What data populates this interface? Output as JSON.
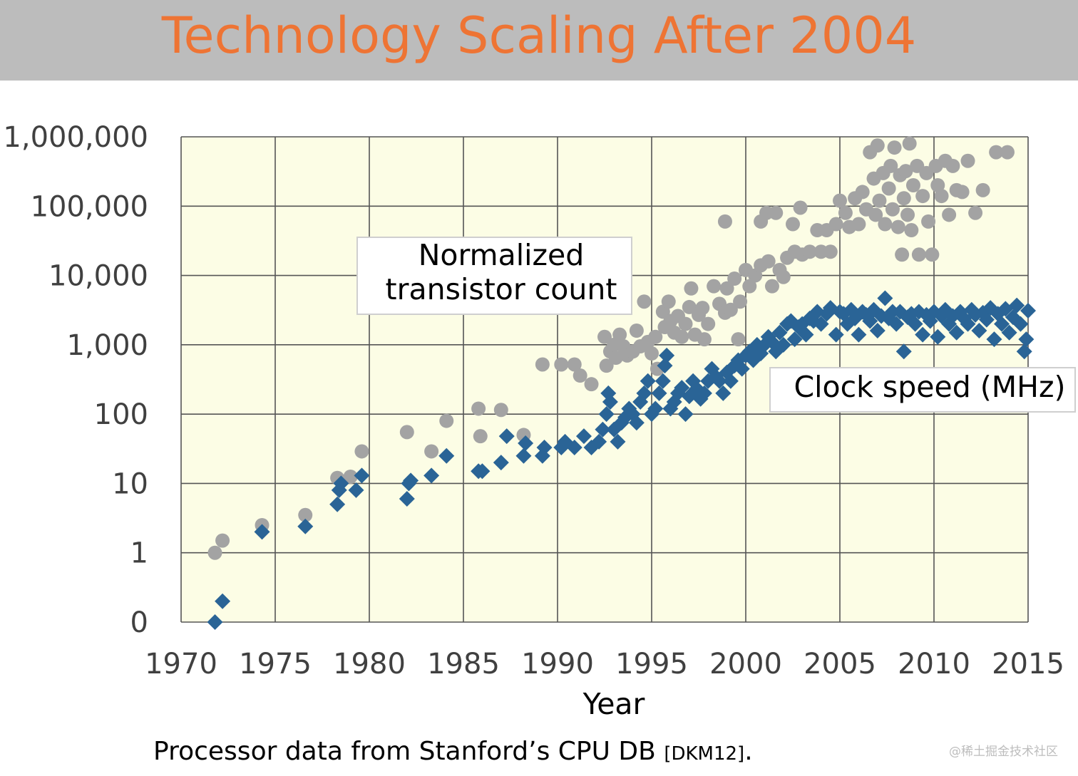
{
  "slide": {
    "title": "Technology Scaling After 2004",
    "caption": "Processor data from Stanford’s CPU DB",
    "caption_cite": "[DKM12]",
    "caption_end": ".",
    "watermark": "@稀土掘金技术社区"
  },
  "chart_data": {
    "type": "scatter",
    "title": "Technology Scaling After 2004",
    "xlabel": "Year",
    "ylabel": "",
    "xlim": [
      1970,
      2015
    ],
    "x_ticks": [
      1970,
      1975,
      1980,
      1985,
      1990,
      1995,
      2000,
      2005,
      2010,
      2015
    ],
    "x_tick_labels": [
      "1970",
      "1975",
      "1980",
      "1985",
      "1990",
      "1995",
      "2000",
      "2005",
      "2010",
      "2015"
    ],
    "y_scale": "log",
    "ylim_log10": [
      -1,
      6
    ],
    "y_ticks_log10": [
      -1,
      0,
      1,
      2,
      3,
      4,
      5,
      6
    ],
    "y_tick_labels": [
      "0",
      "1",
      "10",
      "100",
      "1,000",
      "10,000",
      "100,000",
      "1,000,000"
    ],
    "grid": true,
    "colors": {
      "plot_bg": "#fcfde5",
      "grid": "#555555",
      "transistor": "#a3a3a3",
      "clock": "#2a6496",
      "title": "#ee7434"
    },
    "annotations": [
      {
        "text_lines": [
          "Normalized",
          "transistor count"
        ],
        "series": "Normalized transistor count"
      },
      {
        "text_lines": [
          "Clock speed (MHz)"
        ],
        "series": "Clock speed (MHz)"
      }
    ],
    "series": [
      {
        "name": "Normalized transistor count",
        "marker": "circle",
        "points": [
          [
            1971.8,
            1.0
          ],
          [
            1972.2,
            1.5
          ],
          [
            1974.3,
            2.5
          ],
          [
            1976.6,
            3.5
          ],
          [
            1978.3,
            12
          ],
          [
            1979.0,
            12.5
          ],
          [
            1979.6,
            29
          ],
          [
            1982.0,
            55
          ],
          [
            1983.3,
            29
          ],
          [
            1984.1,
            80
          ],
          [
            1985.8,
            120
          ],
          [
            1985.9,
            48
          ],
          [
            1987.0,
            115
          ],
          [
            1988.2,
            50
          ],
          [
            1989.2,
            520
          ],
          [
            1990.2,
            520
          ],
          [
            1990.9,
            520
          ],
          [
            1991.2,
            360
          ],
          [
            1991.8,
            270
          ],
          [
            1992.5,
            1300
          ],
          [
            1992.6,
            500
          ],
          [
            1992.8,
            800
          ],
          [
            1993.0,
            1000
          ],
          [
            1993.1,
            650
          ],
          [
            1993.3,
            1400
          ],
          [
            1993.5,
            950
          ],
          [
            1993.7,
            700
          ],
          [
            1994.0,
            800
          ],
          [
            1994.2,
            1600
          ],
          [
            1994.4,
            950
          ],
          [
            1994.6,
            4200
          ],
          [
            1994.8,
            1100
          ],
          [
            1995.0,
            750
          ],
          [
            1995.2,
            1300
          ],
          [
            1995.3,
            450
          ],
          [
            1995.6,
            3000
          ],
          [
            1995.7,
            1800
          ],
          [
            1995.9,
            4200
          ],
          [
            1996.0,
            2200
          ],
          [
            1996.2,
            1500
          ],
          [
            1996.4,
            2600
          ],
          [
            1996.6,
            1300
          ],
          [
            1996.8,
            2000
          ],
          [
            1997.0,
            3500
          ],
          [
            1997.1,
            6500
          ],
          [
            1997.3,
            1400
          ],
          [
            1997.5,
            2700
          ],
          [
            1997.7,
            3400
          ],
          [
            1997.8,
            1200
          ],
          [
            1998.0,
            2000
          ],
          [
            1998.3,
            7000
          ],
          [
            1998.6,
            3900
          ],
          [
            1998.9,
            2900
          ],
          [
            1998.9,
            60000
          ],
          [
            1999.0,
            6500
          ],
          [
            1999.2,
            3200
          ],
          [
            1999.4,
            9000
          ],
          [
            1999.6,
            1200
          ],
          [
            1999.7,
            4200
          ],
          [
            2000.0,
            12000
          ],
          [
            2000.2,
            7000
          ],
          [
            2000.5,
            10000
          ],
          [
            2000.8,
            14000
          ],
          [
            2000.8,
            60000
          ],
          [
            2001.1,
            80000
          ],
          [
            2001.2,
            16000
          ],
          [
            2001.4,
            7000
          ],
          [
            2001.6,
            80000
          ],
          [
            2001.8,
            12000
          ],
          [
            2002.0,
            9500
          ],
          [
            2002.2,
            18000
          ],
          [
            2002.5,
            55000
          ],
          [
            2002.6,
            22000
          ],
          [
            2002.9,
            95000
          ],
          [
            2003.0,
            20000
          ],
          [
            2003.4,
            22000
          ],
          [
            2003.8,
            45000
          ],
          [
            2004.0,
            22000
          ],
          [
            2004.3,
            45000
          ],
          [
            2004.5,
            22000
          ],
          [
            2004.8,
            55000
          ],
          [
            2005.0,
            120000
          ],
          [
            2005.3,
            80000
          ],
          [
            2005.5,
            50000
          ],
          [
            2005.8,
            130000
          ],
          [
            2006.0,
            55000
          ],
          [
            2006.2,
            160000
          ],
          [
            2006.4,
            90000
          ],
          [
            2006.6,
            600000
          ],
          [
            2006.8,
            250000
          ],
          [
            2006.9,
            75000
          ],
          [
            2007.0,
            750000
          ],
          [
            2007.1,
            120000
          ],
          [
            2007.3,
            300000
          ],
          [
            2007.4,
            55000
          ],
          [
            2007.6,
            180000
          ],
          [
            2007.7,
            380000
          ],
          [
            2007.8,
            90000
          ],
          [
            2007.9,
            700000
          ],
          [
            2008.1,
            50000
          ],
          [
            2008.2,
            280000
          ],
          [
            2008.3,
            20000
          ],
          [
            2008.4,
            130000
          ],
          [
            2008.5,
            320000
          ],
          [
            2008.6,
            75000
          ],
          [
            2008.7,
            800000
          ],
          [
            2008.8,
            45000
          ],
          [
            2008.9,
            200000
          ],
          [
            2009.1,
            380000
          ],
          [
            2009.2,
            20000
          ],
          [
            2009.4,
            140000
          ],
          [
            2009.6,
            300000
          ],
          [
            2009.7,
            60000
          ],
          [
            2009.9,
            20000
          ],
          [
            2010.1,
            380000
          ],
          [
            2010.2,
            200000
          ],
          [
            2010.4,
            140000
          ],
          [
            2010.6,
            450000
          ],
          [
            2010.8,
            75000
          ],
          [
            2011.0,
            380000
          ],
          [
            2011.2,
            170000
          ],
          [
            2011.5,
            160000
          ],
          [
            2011.8,
            450000
          ],
          [
            2012.2,
            80000
          ],
          [
            2012.6,
            170000
          ],
          [
            2013.3,
            600000
          ],
          [
            2013.9,
            600000
          ]
        ]
      },
      {
        "name": "Clock speed (MHz)",
        "marker": "diamond",
        "points": [
          [
            1971.8,
            0.1
          ],
          [
            1972.2,
            0.2
          ],
          [
            1974.3,
            2
          ],
          [
            1976.6,
            2.4
          ],
          [
            1978.3,
            5
          ],
          [
            1978.4,
            8
          ],
          [
            1978.5,
            10
          ],
          [
            1979.3,
            8
          ],
          [
            1979.6,
            13
          ],
          [
            1982.0,
            6
          ],
          [
            1982.1,
            10
          ],
          [
            1982.2,
            11
          ],
          [
            1983.3,
            13
          ],
          [
            1984.1,
            25
          ],
          [
            1985.8,
            15
          ],
          [
            1986.0,
            15
          ],
          [
            1987.0,
            20
          ],
          [
            1987.3,
            48
          ],
          [
            1988.2,
            25
          ],
          [
            1988.3,
            38
          ],
          [
            1989.2,
            25
          ],
          [
            1989.3,
            33
          ],
          [
            1990.2,
            33
          ],
          [
            1990.4,
            40
          ],
          [
            1990.9,
            33
          ],
          [
            1991.4,
            48
          ],
          [
            1991.8,
            33
          ],
          [
            1992.2,
            40
          ],
          [
            1992.4,
            60
          ],
          [
            1992.6,
            100
          ],
          [
            1992.7,
            200
          ],
          [
            1992.8,
            150
          ],
          [
            1993.0,
            60
          ],
          [
            1993.2,
            40
          ],
          [
            1993.4,
            75
          ],
          [
            1993.6,
            90
          ],
          [
            1993.8,
            120
          ],
          [
            1994.0,
            100
          ],
          [
            1994.2,
            75
          ],
          [
            1994.4,
            150
          ],
          [
            1994.6,
            200
          ],
          [
            1994.8,
            300
          ],
          [
            1995.0,
            100
          ],
          [
            1995.2,
            120
          ],
          [
            1995.4,
            200
          ],
          [
            1995.6,
            300
          ],
          [
            1995.7,
            500
          ],
          [
            1995.8,
            700
          ],
          [
            1996.0,
            120
          ],
          [
            1996.2,
            150
          ],
          [
            1996.4,
            200
          ],
          [
            1996.6,
            240
          ],
          [
            1996.8,
            100
          ],
          [
            1997.0,
            180
          ],
          [
            1997.2,
            300
          ],
          [
            1997.4,
            233
          ],
          [
            1997.6,
            166
          ],
          [
            1997.8,
            200
          ],
          [
            1998.0,
            300
          ],
          [
            1998.2,
            450
          ],
          [
            1998.4,
            350
          ],
          [
            1998.6,
            300
          ],
          [
            1998.8,
            200
          ],
          [
            1999.0,
            400
          ],
          [
            1999.2,
            300
          ],
          [
            1999.4,
            500
          ],
          [
            1999.6,
            600
          ],
          [
            1999.8,
            450
          ],
          [
            2000.0,
            700
          ],
          [
            2000.2,
            800
          ],
          [
            2000.4,
            600
          ],
          [
            2000.6,
            1000
          ],
          [
            2000.8,
            750
          ],
          [
            2001.0,
            1000
          ],
          [
            2001.2,
            1300
          ],
          [
            2001.4,
            1100
          ],
          [
            2001.6,
            800
          ],
          [
            2001.8,
            1500
          ],
          [
            2002.0,
            1000
          ],
          [
            2002.2,
            2000
          ],
          [
            2002.4,
            2200
          ],
          [
            2002.6,
            1200
          ],
          [
            2002.8,
            1800
          ],
          [
            2003.0,
            2000
          ],
          [
            2003.2,
            1400
          ],
          [
            2003.4,
            2400
          ],
          [
            2003.6,
            2200
          ],
          [
            2003.8,
            3000
          ],
          [
            2004.0,
            2000
          ],
          [
            2004.3,
            2800
          ],
          [
            2004.5,
            3400
          ],
          [
            2004.8,
            1400
          ],
          [
            2005.0,
            3000
          ],
          [
            2005.2,
            2800
          ],
          [
            2005.4,
            2000
          ],
          [
            2005.6,
            3200
          ],
          [
            2005.8,
            2400
          ],
          [
            2006.0,
            1400
          ],
          [
            2006.2,
            3000
          ],
          [
            2006.4,
            2700
          ],
          [
            2006.6,
            2200
          ],
          [
            2006.8,
            3200
          ],
          [
            2007.0,
            1600
          ],
          [
            2007.2,
            2600
          ],
          [
            2007.4,
            4700
          ],
          [
            2007.6,
            2400
          ],
          [
            2007.8,
            3000
          ],
          [
            2008.0,
            2000
          ],
          [
            2008.2,
            3000
          ],
          [
            2008.4,
            800
          ],
          [
            2008.6,
            2500
          ],
          [
            2008.8,
            2800
          ],
          [
            2009.0,
            2000
          ],
          [
            2009.2,
            3000
          ],
          [
            2009.4,
            1400
          ],
          [
            2009.6,
            2700
          ],
          [
            2009.8,
            2200
          ],
          [
            2010.0,
            3000
          ],
          [
            2010.2,
            1300
          ],
          [
            2010.4,
            2600
          ],
          [
            2010.6,
            3200
          ],
          [
            2010.8,
            2000
          ],
          [
            2011.0,
            2600
          ],
          [
            2011.2,
            1500
          ],
          [
            2011.4,
            3000
          ],
          [
            2011.6,
            2400
          ],
          [
            2011.8,
            2000
          ],
          [
            2012.0,
            3200
          ],
          [
            2012.2,
            2700
          ],
          [
            2012.4,
            1600
          ],
          [
            2012.6,
            2900
          ],
          [
            2012.8,
            2300
          ],
          [
            2013.0,
            3400
          ],
          [
            2013.2,
            1200
          ],
          [
            2013.4,
            2800
          ],
          [
            2013.6,
            2000
          ],
          [
            2013.8,
            3300
          ],
          [
            2014.0,
            1500
          ],
          [
            2014.2,
            2500
          ],
          [
            2014.4,
            3700
          ],
          [
            2014.6,
            2000
          ],
          [
            2014.8,
            800
          ],
          [
            2014.9,
            1200
          ],
          [
            2015.0,
            3100
          ]
        ]
      }
    ]
  }
}
